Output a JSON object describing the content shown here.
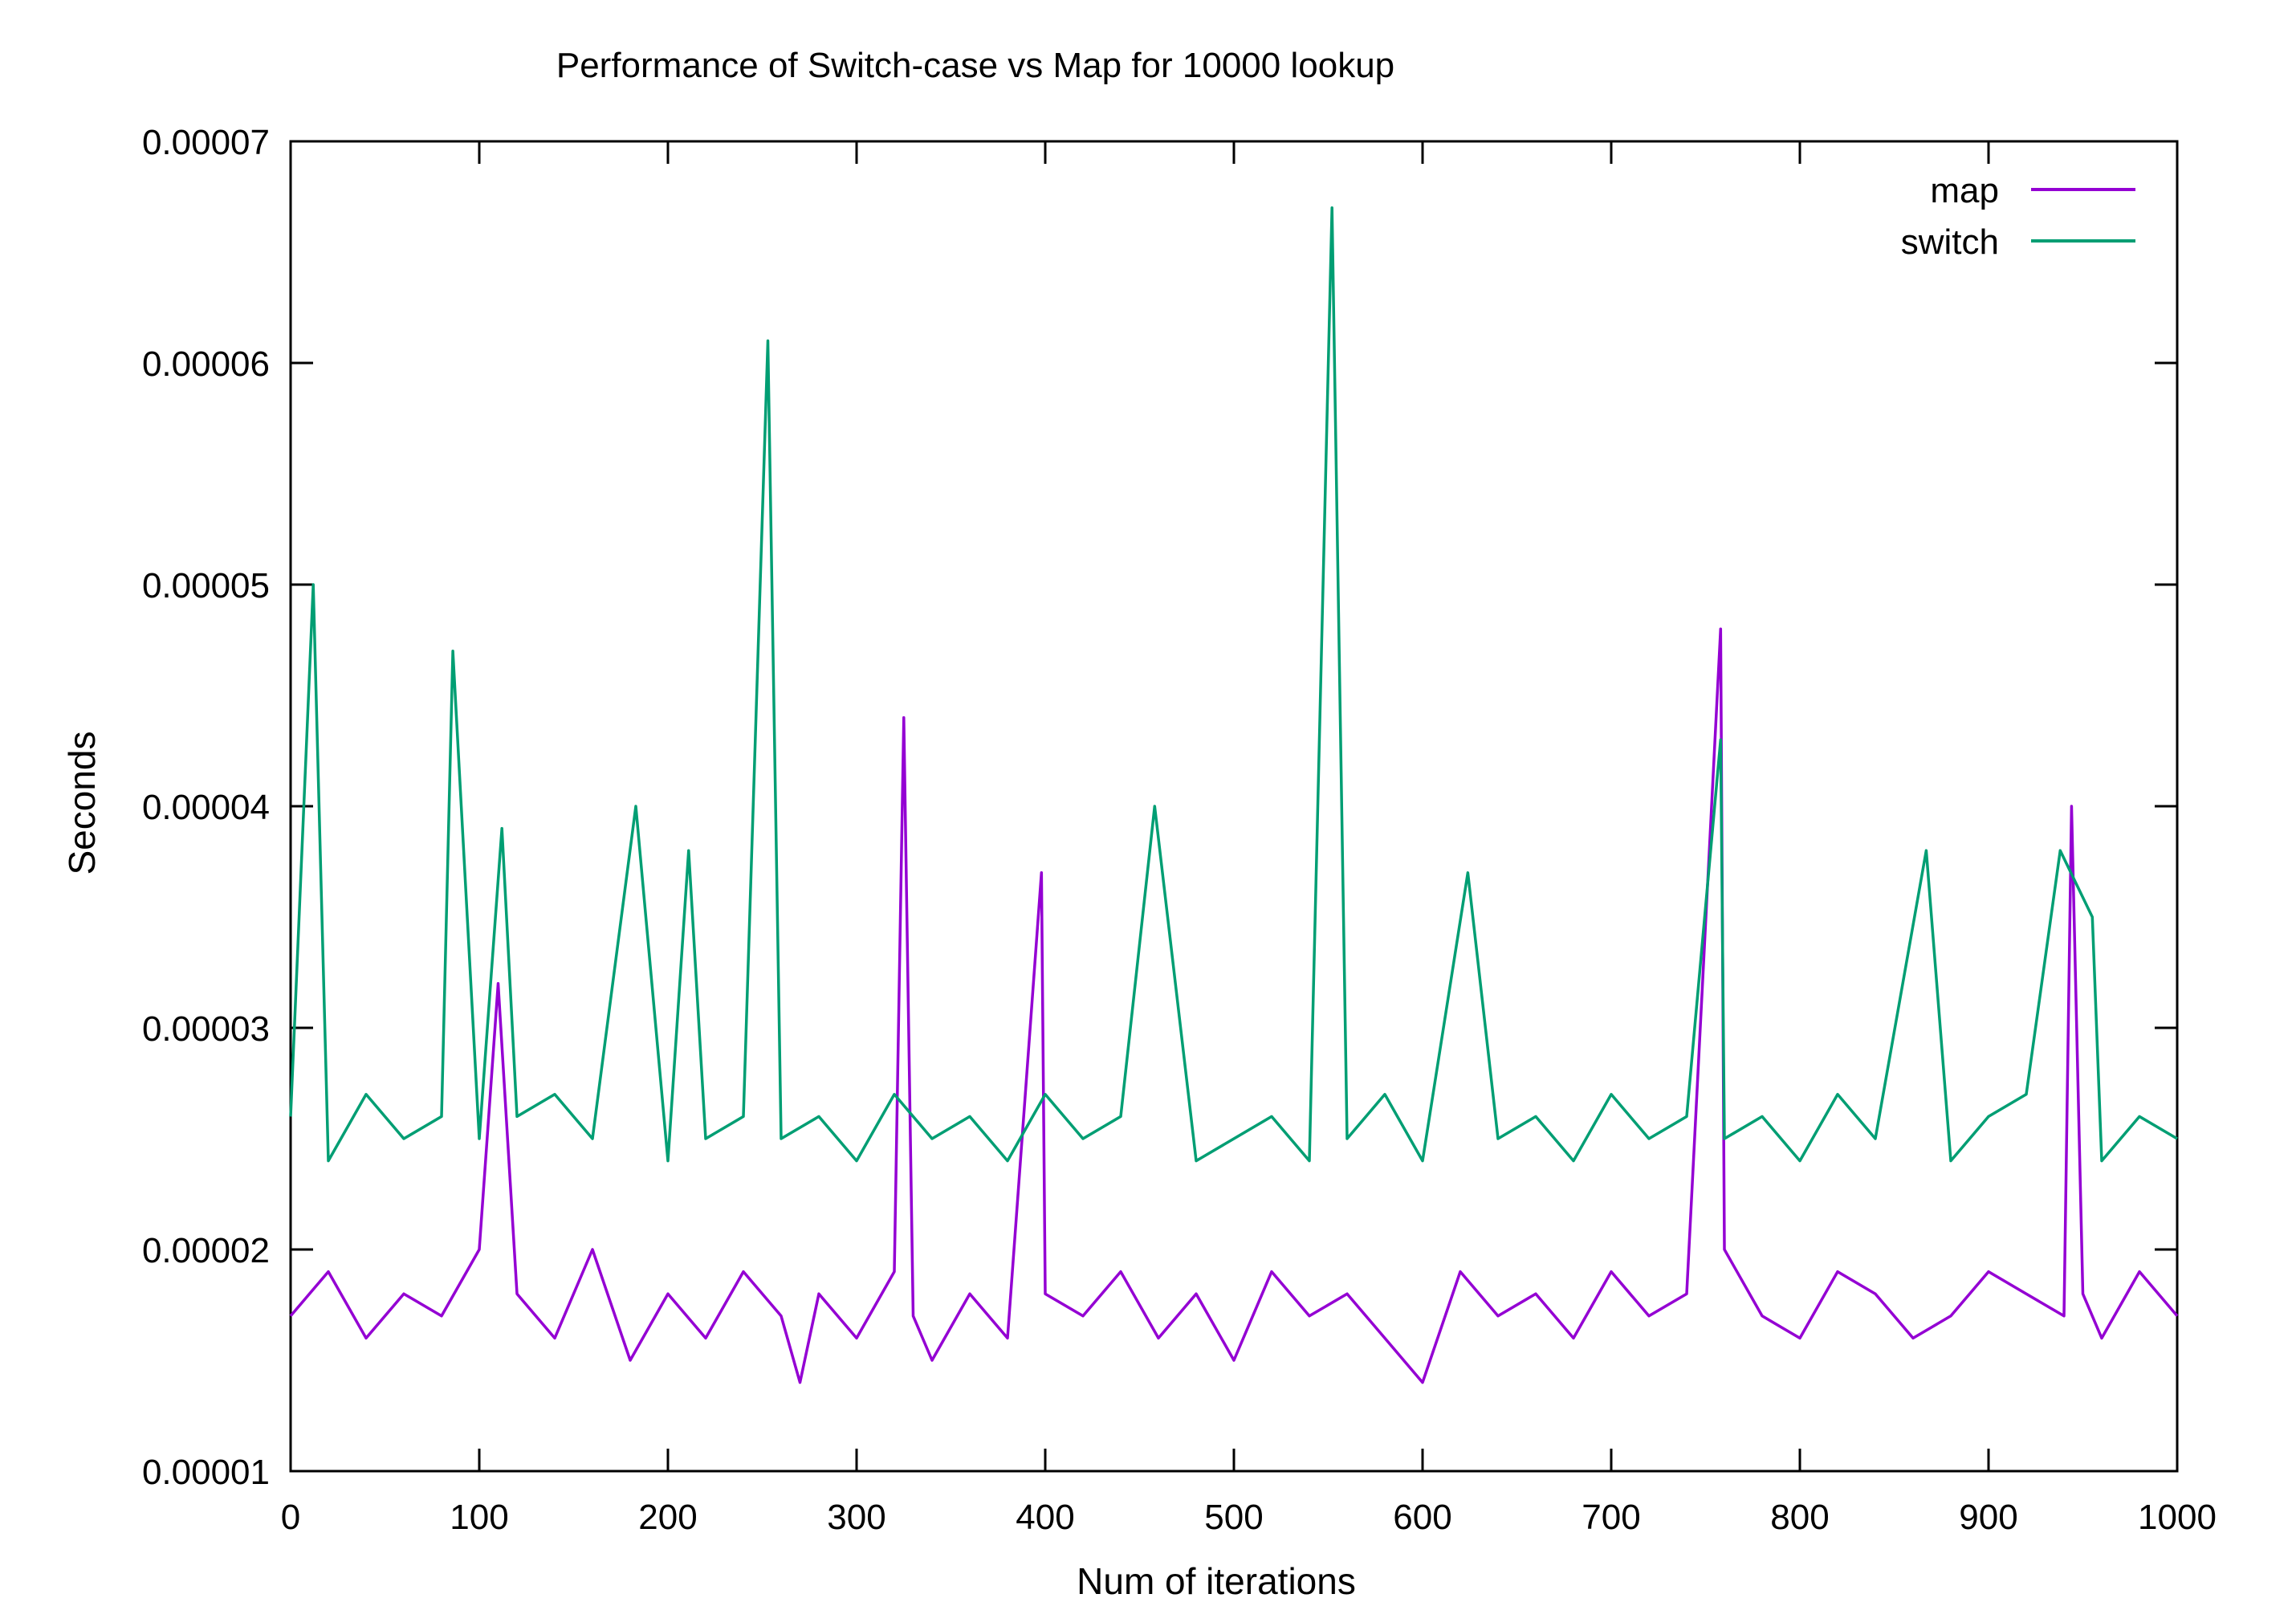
{
  "chart_data": {
    "type": "line",
    "title": "Performance of Switch-case vs Map for 10000 lookup",
    "xlabel": "Num of iterations",
    "ylabel": "Seconds",
    "xlim": [
      0,
      1000
    ],
    "ylim": [
      1e-05,
      7e-05
    ],
    "x_ticks": [
      0,
      100,
      200,
      300,
      400,
      500,
      600,
      700,
      800,
      900,
      1000
    ],
    "y_ticks": [
      "0.00001",
      "0.00002",
      "0.00003",
      "0.00004",
      "0.00005",
      "0.00006",
      "0.00007"
    ],
    "grid": false,
    "legend_position": "top-right",
    "series": [
      {
        "name": "map",
        "color": "#9400d3",
        "x": [
          0,
          20,
          40,
          60,
          80,
          100,
          110,
          120,
          140,
          160,
          180,
          200,
          220,
          240,
          260,
          270,
          280,
          300,
          320,
          325,
          330,
          340,
          360,
          380,
          398,
          400,
          420,
          440,
          460,
          480,
          500,
          520,
          540,
          560,
          580,
          600,
          620,
          640,
          660,
          680,
          700,
          720,
          740,
          758,
          760,
          780,
          800,
          820,
          840,
          860,
          880,
          900,
          920,
          940,
          944,
          950,
          960,
          980,
          1000
        ],
        "y": [
          1.7e-05,
          1.9e-05,
          1.6e-05,
          1.8e-05,
          1.7e-05,
          2e-05,
          3.2e-05,
          1.8e-05,
          1.6e-05,
          2e-05,
          1.5e-05,
          1.8e-05,
          1.6e-05,
          1.9e-05,
          1.7e-05,
          1.4e-05,
          1.8e-05,
          1.6e-05,
          1.9e-05,
          4.4e-05,
          1.7e-05,
          1.5e-05,
          1.8e-05,
          1.6e-05,
          3.7e-05,
          1.8e-05,
          1.7e-05,
          1.9e-05,
          1.6e-05,
          1.8e-05,
          1.5e-05,
          1.9e-05,
          1.7e-05,
          1.8e-05,
          1.6e-05,
          1.4e-05,
          1.9e-05,
          1.7e-05,
          1.8e-05,
          1.6e-05,
          1.9e-05,
          1.7e-05,
          1.8e-05,
          4.8e-05,
          2e-05,
          1.7e-05,
          1.6e-05,
          1.9e-05,
          1.8e-05,
          1.6e-05,
          1.7e-05,
          1.9e-05,
          1.8e-05,
          1.7e-05,
          4e-05,
          1.8e-05,
          1.6e-05,
          1.9e-05,
          1.7e-05
        ]
      },
      {
        "name": "switch",
        "color": "#009e73",
        "x": [
          0,
          12,
          20,
          40,
          60,
          80,
          86,
          100,
          112,
          120,
          140,
          160,
          183,
          200,
          211,
          220,
          240,
          253,
          260,
          280,
          300,
          320,
          340,
          360,
          380,
          400,
          420,
          440,
          458,
          480,
          500,
          520,
          540,
          552,
          560,
          580,
          600,
          624,
          640,
          660,
          680,
          700,
          720,
          740,
          758,
          760,
          780,
          800,
          820,
          840,
          867,
          880,
          900,
          920,
          938,
          955,
          960,
          980,
          1000
        ],
        "y": [
          2.6e-05,
          5e-05,
          2.4e-05,
          2.7e-05,
          2.5e-05,
          2.6e-05,
          4.7e-05,
          2.5e-05,
          3.9e-05,
          2.6e-05,
          2.7e-05,
          2.5e-05,
          4e-05,
          2.4e-05,
          3.8e-05,
          2.5e-05,
          2.6e-05,
          6.1e-05,
          2.5e-05,
          2.6e-05,
          2.4e-05,
          2.7e-05,
          2.5e-05,
          2.6e-05,
          2.4e-05,
          2.7e-05,
          2.5e-05,
          2.6e-05,
          4e-05,
          2.4e-05,
          2.5e-05,
          2.6e-05,
          2.4e-05,
          6.7e-05,
          2.5e-05,
          2.7e-05,
          2.4e-05,
          3.7e-05,
          2.5e-05,
          2.6e-05,
          2.4e-05,
          2.7e-05,
          2.5e-05,
          2.6e-05,
          4.3e-05,
          2.5e-05,
          2.6e-05,
          2.4e-05,
          2.7e-05,
          2.5e-05,
          3.8e-05,
          2.4e-05,
          2.6e-05,
          2.7e-05,
          3.8e-05,
          3.5e-05,
          2.4e-05,
          2.6e-05,
          2.5e-05
        ]
      }
    ]
  }
}
